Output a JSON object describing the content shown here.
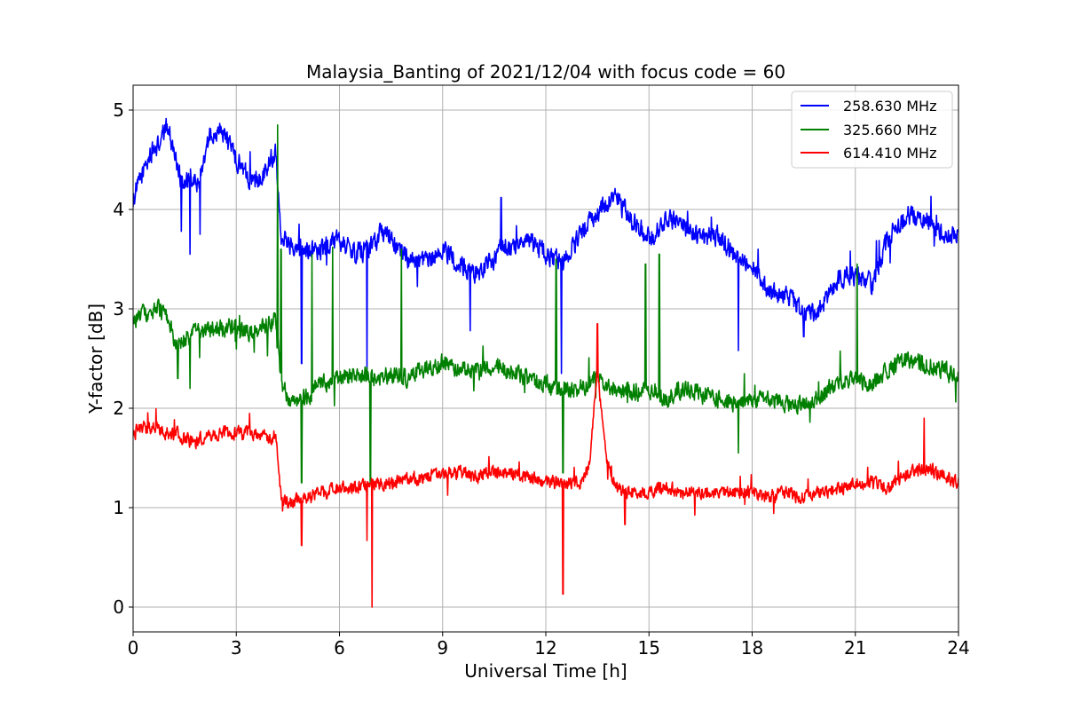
{
  "chart_data": {
    "type": "line",
    "title": "Malaysia_Banting of 2021/12/04 with focus code = 60",
    "xlabel": "Universal Time [h]",
    "ylabel": "Y-factor [dB]",
    "xlim": [
      0,
      24
    ],
    "ylim": [
      -0.25,
      5.25
    ],
    "x_ticks": [
      0,
      3,
      6,
      9,
      12,
      15,
      18,
      21,
      24
    ],
    "y_ticks": [
      0,
      1,
      2,
      3,
      4,
      5
    ],
    "grid": true,
    "legend_position": "top-right",
    "series": [
      {
        "name": "258.630 MHz",
        "color": "#0000ff",
        "x": [
          0,
          0.25,
          0.5,
          0.75,
          1.0,
          1.25,
          1.4,
          1.5,
          1.7,
          1.9,
          2.0,
          2.25,
          2.5,
          2.75,
          3.0,
          3.25,
          3.5,
          3.75,
          4.0,
          4.15,
          4.3,
          4.5,
          4.75,
          5.0,
          5.5,
          6.0,
          6.5,
          7.0,
          7.25,
          7.5,
          8.0,
          8.5,
          9.0,
          9.5,
          10.0,
          10.5,
          10.75,
          11.0,
          11.5,
          12.0,
          12.5,
          13.0,
          13.5,
          14.0,
          14.25,
          14.5,
          15.0,
          15.5,
          16.0,
          16.5,
          17.0,
          17.5,
          18.0,
          18.5,
          19.0,
          19.5,
          20.0,
          20.5,
          21.0,
          21.5,
          22.0,
          22.5,
          23.0,
          23.5,
          24.0
        ],
        "y": [
          4.1,
          4.35,
          4.55,
          4.65,
          4.85,
          4.5,
          4.3,
          4.25,
          4.3,
          4.25,
          4.45,
          4.75,
          4.8,
          4.7,
          4.5,
          4.4,
          4.25,
          4.35,
          4.5,
          4.6,
          3.75,
          3.65,
          3.65,
          3.6,
          3.6,
          3.7,
          3.55,
          3.65,
          3.8,
          3.7,
          3.5,
          3.45,
          3.6,
          3.45,
          3.35,
          3.5,
          3.65,
          3.6,
          3.7,
          3.55,
          3.45,
          3.75,
          3.95,
          4.15,
          4.0,
          3.9,
          3.7,
          3.9,
          3.85,
          3.7,
          3.75,
          3.55,
          3.45,
          3.15,
          3.15,
          2.95,
          3.0,
          3.3,
          3.35,
          3.25,
          3.75,
          3.95,
          3.9,
          3.75,
          3.75
        ],
        "spikes": [
          {
            "x": 1.4,
            "y": 3.78
          },
          {
            "x": 1.65,
            "y": 3.55
          },
          {
            "x": 1.95,
            "y": 3.75
          },
          {
            "x": 4.9,
            "y": 2.45
          },
          {
            "x": 6.8,
            "y": 2.35
          },
          {
            "x": 9.8,
            "y": 2.78
          },
          {
            "x": 12.45,
            "y": 2.35
          },
          {
            "x": 17.6,
            "y": 2.58
          },
          {
            "x": 19.5,
            "y": 2.72
          },
          {
            "x": 10.7,
            "y": 4.12
          }
        ]
      },
      {
        "name": "325.660 MHz",
        "color": "#008000",
        "x": [
          0,
          0.25,
          0.5,
          0.75,
          1.0,
          1.25,
          1.5,
          1.75,
          2.0,
          2.5,
          3.0,
          3.5,
          4.0,
          4.15,
          4.3,
          4.5,
          5.0,
          5.5,
          6.0,
          6.5,
          7.0,
          7.5,
          8.0,
          8.5,
          9.0,
          9.5,
          10.0,
          10.5,
          11.0,
          11.5,
          12.0,
          12.5,
          13.0,
          13.5,
          14.0,
          14.5,
          15.0,
          15.5,
          16.0,
          16.5,
          17.0,
          17.5,
          18.0,
          18.5,
          19.0,
          19.5,
          20.0,
          20.5,
          21.0,
          21.5,
          22.0,
          22.5,
          23.0,
          23.5,
          24.0
        ],
        "y": [
          2.85,
          2.95,
          2.95,
          3.0,
          2.9,
          2.65,
          2.7,
          2.75,
          2.8,
          2.8,
          2.8,
          2.75,
          2.85,
          2.9,
          2.3,
          2.1,
          2.1,
          2.25,
          2.3,
          2.35,
          2.3,
          2.35,
          2.3,
          2.4,
          2.45,
          2.4,
          2.35,
          2.45,
          2.35,
          2.3,
          2.25,
          2.2,
          2.2,
          2.3,
          2.2,
          2.15,
          2.2,
          2.1,
          2.2,
          2.15,
          2.1,
          2.05,
          2.1,
          2.1,
          2.05,
          2.05,
          2.1,
          2.3,
          2.3,
          2.25,
          2.4,
          2.5,
          2.45,
          2.4,
          2.3
        ],
        "spikes": [
          {
            "x": 4.2,
            "y": 4.85
          },
          {
            "x": 4.3,
            "y": 3.6
          },
          {
            "x": 4.9,
            "y": 1.25
          },
          {
            "x": 5.2,
            "y": 3.55
          },
          {
            "x": 5.8,
            "y": 3.62
          },
          {
            "x": 6.9,
            "y": 1.25
          },
          {
            "x": 7.8,
            "y": 3.6
          },
          {
            "x": 12.3,
            "y": 3.5
          },
          {
            "x": 12.5,
            "y": 1.35
          },
          {
            "x": 14.9,
            "y": 3.45
          },
          {
            "x": 15.3,
            "y": 3.55
          },
          {
            "x": 17.6,
            "y": 1.55
          },
          {
            "x": 21.05,
            "y": 3.45
          },
          {
            "x": 1.3,
            "y": 2.3
          },
          {
            "x": 1.65,
            "y": 2.2
          }
        ]
      },
      {
        "name": "614.410 MHz",
        "color": "#ff0000",
        "x": [
          0,
          0.25,
          0.5,
          0.75,
          1.0,
          1.25,
          1.5,
          1.75,
          2.0,
          2.5,
          3.0,
          3.5,
          4.0,
          4.15,
          4.3,
          4.5,
          5.0,
          5.5,
          6.0,
          6.5,
          7.0,
          7.5,
          8.0,
          8.5,
          9.0,
          9.5,
          10.0,
          10.5,
          11.0,
          11.5,
          12.0,
          12.5,
          13.0,
          13.25,
          13.5,
          13.75,
          14.0,
          14.5,
          15.0,
          15.5,
          16.0,
          16.5,
          17.0,
          17.5,
          18.0,
          18.5,
          19.0,
          19.5,
          20.0,
          20.5,
          21.0,
          21.5,
          22.0,
          22.5,
          23.0,
          23.5,
          24.0
        ],
        "y": [
          1.75,
          1.8,
          1.8,
          1.8,
          1.75,
          1.75,
          1.7,
          1.65,
          1.7,
          1.75,
          1.75,
          1.75,
          1.7,
          1.75,
          1.1,
          1.05,
          1.1,
          1.15,
          1.2,
          1.2,
          1.25,
          1.25,
          1.3,
          1.3,
          1.35,
          1.35,
          1.3,
          1.35,
          1.35,
          1.3,
          1.25,
          1.25,
          1.25,
          1.4,
          2.4,
          1.5,
          1.2,
          1.15,
          1.15,
          1.2,
          1.15,
          1.15,
          1.15,
          1.15,
          1.15,
          1.1,
          1.15,
          1.1,
          1.15,
          1.2,
          1.25,
          1.25,
          1.2,
          1.35,
          1.4,
          1.35,
          1.25
        ],
        "spikes": [
          {
            "x": 4.9,
            "y": 0.62
          },
          {
            "x": 6.8,
            "y": 0.67
          },
          {
            "x": 6.95,
            "y": 0.0
          },
          {
            "x": 12.5,
            "y": 0.13
          },
          {
            "x": 13.5,
            "y": 2.85
          },
          {
            "x": 14.3,
            "y": 0.83
          },
          {
            "x": 23.0,
            "y": 1.9
          }
        ]
      }
    ]
  }
}
